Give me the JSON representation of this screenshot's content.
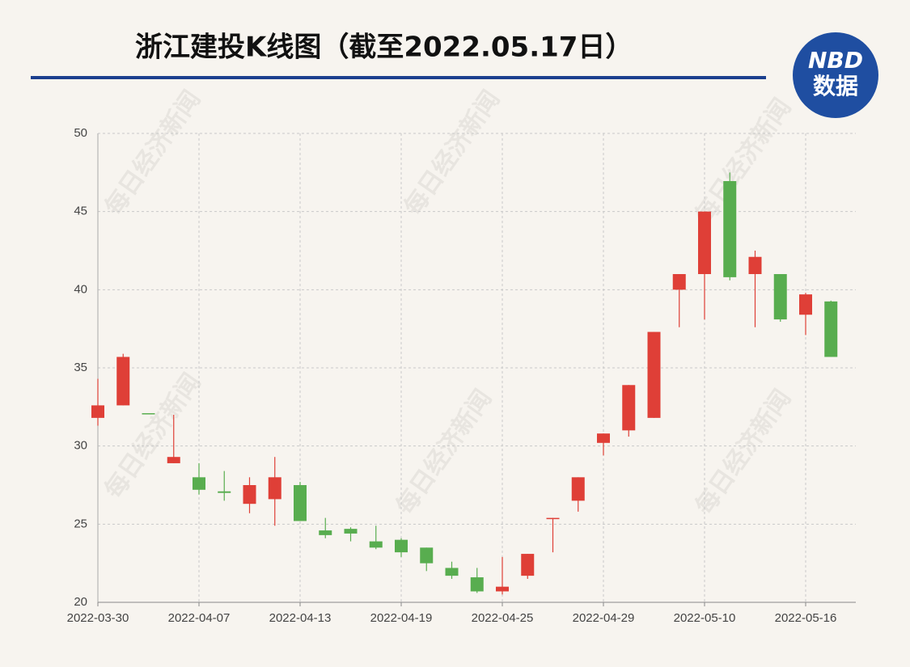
{
  "title": "浙江建投K线图（截至2022.05.17日）",
  "logo": {
    "brand": "NBD",
    "sub": "数据"
  },
  "watermark": "每日经济新闻",
  "chart_data": {
    "type": "candlestick",
    "categories": [
      "2022-03-30",
      null,
      null,
      null,
      "2022-04-07",
      null,
      null,
      null,
      "2022-04-13",
      null,
      null,
      null,
      "2022-04-19",
      null,
      null,
      null,
      "2022-04-25",
      null,
      null,
      null,
      "2022-04-29",
      null,
      null,
      null,
      "2022-05-10",
      null,
      null,
      null,
      "2022-05-16",
      null
    ],
    "open": [
      31.8,
      32.6,
      32.1,
      28.9,
      28.0,
      27.1,
      26.3,
      26.6,
      27.5,
      24.6,
      24.7,
      23.9,
      24.0,
      23.5,
      22.2,
      21.6,
      20.7,
      21.7,
      25.4,
      26.5,
      30.2,
      31.0,
      31.8,
      40.0,
      41.0,
      46.95,
      41.0,
      41.0,
      38.4,
      39.25
    ],
    "high": [
      34.3,
      35.9,
      32.1,
      32.0,
      28.9,
      28.4,
      28.0,
      29.3,
      27.7,
      25.4,
      24.8,
      24.9,
      24.1,
      23.5,
      22.6,
      22.2,
      22.9,
      23.1,
      25.4,
      28.0,
      30.8,
      33.9,
      37.3,
      41.0,
      45.0,
      47.5,
      42.5,
      41.0,
      39.8,
      39.3
    ],
    "low": [
      31.3,
      32.6,
      32.1,
      28.9,
      26.9,
      26.5,
      25.7,
      24.9,
      25.2,
      24.1,
      23.9,
      23.4,
      22.9,
      22.0,
      21.5,
      20.6,
      20.5,
      21.5,
      23.2,
      25.8,
      29.4,
      30.6,
      31.8,
      37.6,
      38.1,
      40.6,
      37.6,
      37.95,
      37.1,
      35.7
    ],
    "close": [
      32.6,
      35.7,
      32.1,
      29.3,
      27.2,
      27.0,
      27.5,
      28.0,
      25.2,
      24.3,
      24.4,
      23.5,
      23.2,
      22.5,
      21.7,
      20.7,
      21.0,
      23.1,
      25.4,
      28.0,
      30.8,
      33.9,
      37.3,
      41.0,
      45.0,
      40.8,
      42.1,
      38.1,
      39.7,
      35.7
    ],
    "up_color": "#df3f37",
    "down_color": "#58ad4f",
    "ylim": [
      20,
      50
    ],
    "yticks": [
      20,
      25,
      30,
      35,
      40,
      45,
      50
    ],
    "grid": true
  }
}
